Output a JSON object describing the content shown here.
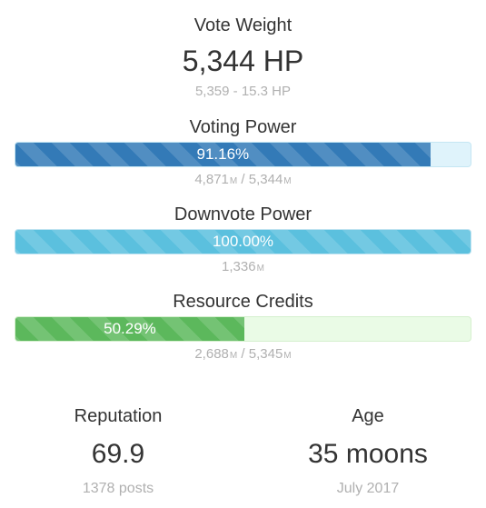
{
  "vote_weight": {
    "title": "Vote Weight",
    "value": "5,344 HP",
    "range": "5,359 - 15.3 HP"
  },
  "voting_power": {
    "title": "Voting Power",
    "percent_label": "91.16%",
    "percent": 91.16,
    "current": "4,871",
    "current_unit": "M",
    "separator": " / ",
    "max": "5,344",
    "max_unit": "M",
    "color": "#337ab7"
  },
  "downvote_power": {
    "title": "Downvote Power",
    "percent_label": "100.00%",
    "percent": 100,
    "current": "1,336",
    "current_unit": "M",
    "color": "#5bc0de"
  },
  "resource_credits": {
    "title": "Resource Credits",
    "percent_label": "50.29%",
    "percent": 50.29,
    "current": "2,688",
    "current_unit": "M",
    "separator": " / ",
    "max": "5,345",
    "max_unit": "M",
    "color": "#5cb85c"
  },
  "reputation": {
    "title": "Reputation",
    "value": "69.9",
    "sub": "1378 posts"
  },
  "age": {
    "title": "Age",
    "value": "35 moons",
    "sub": "July 2017"
  }
}
